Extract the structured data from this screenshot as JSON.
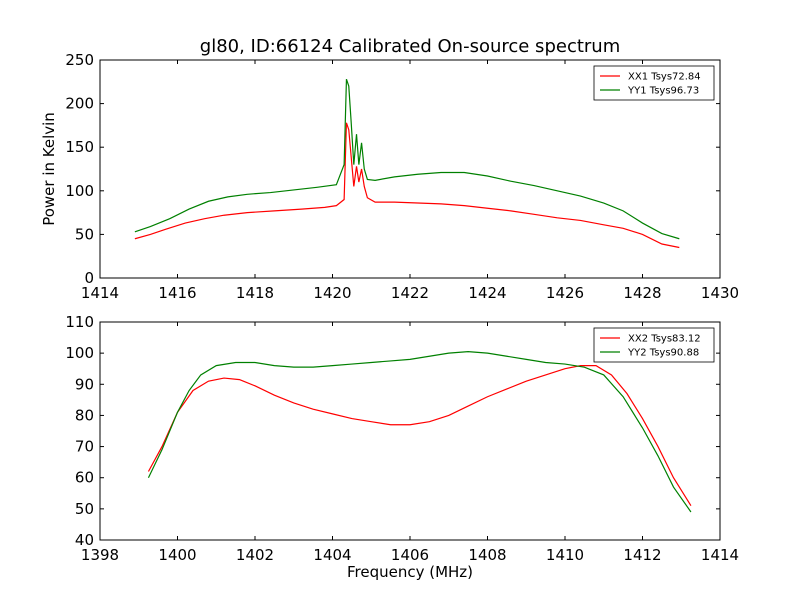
{
  "chart_data": [
    {
      "type": "line",
      "title": "gl80, ID:66124 Calibrated On-source spectrum",
      "xlabel": "",
      "ylabel": "Power in Kelvin",
      "xlim": [
        1414,
        1430
      ],
      "ylim": [
        0,
        250
      ],
      "xticks": [
        "1414",
        "1416",
        "1418",
        "1420",
        "1422",
        "1424",
        "1426",
        "1428",
        "1430"
      ],
      "yticks": [
        "0",
        "50",
        "100",
        "150",
        "200",
        "250"
      ],
      "grid": false,
      "legend": "top-right",
      "series": [
        {
          "name": "XX1 Tsys72.84",
          "color": "#ff0000",
          "points": [
            [
              1414.9,
              45
            ],
            [
              1415.3,
              50
            ],
            [
              1415.7,
              56
            ],
            [
              1416.2,
              63
            ],
            [
              1416.7,
              68
            ],
            [
              1417.2,
              72
            ],
            [
              1417.8,
              75
            ],
            [
              1418.5,
              77
            ],
            [
              1419.2,
              79
            ],
            [
              1419.8,
              81
            ],
            [
              1420.1,
              83
            ],
            [
              1420.3,
              90
            ],
            [
              1420.36,
              178
            ],
            [
              1420.42,
              170
            ],
            [
              1420.48,
              140
            ],
            [
              1420.55,
              105
            ],
            [
              1420.62,
              128
            ],
            [
              1420.68,
              110
            ],
            [
              1420.75,
              125
            ],
            [
              1420.82,
              105
            ],
            [
              1420.9,
              92
            ],
            [
              1421.1,
              87
            ],
            [
              1421.6,
              87
            ],
            [
              1422.2,
              86
            ],
            [
              1422.8,
              85
            ],
            [
              1423.4,
              83
            ],
            [
              1424,
              80
            ],
            [
              1424.6,
              77
            ],
            [
              1425.2,
              73
            ],
            [
              1425.8,
              69
            ],
            [
              1426.4,
              66
            ],
            [
              1427,
              61
            ],
            [
              1427.5,
              57
            ],
            [
              1428,
              50
            ],
            [
              1428.5,
              39
            ],
            [
              1428.95,
              35
            ]
          ]
        },
        {
          "name": "YY1 Tsys96.73",
          "color": "#008000",
          "points": [
            [
              1414.9,
              53
            ],
            [
              1415.3,
              59
            ],
            [
              1415.8,
              68
            ],
            [
              1416.3,
              79
            ],
            [
              1416.8,
              88
            ],
            [
              1417.3,
              93
            ],
            [
              1417.8,
              96
            ],
            [
              1418.4,
              98
            ],
            [
              1419,
              101
            ],
            [
              1419.6,
              104
            ],
            [
              1420.1,
              107
            ],
            [
              1420.3,
              130
            ],
            [
              1420.36,
              228
            ],
            [
              1420.42,
              220
            ],
            [
              1420.48,
              180
            ],
            [
              1420.55,
              130
            ],
            [
              1420.62,
              165
            ],
            [
              1420.68,
              130
            ],
            [
              1420.75,
              155
            ],
            [
              1420.82,
              125
            ],
            [
              1420.9,
              113
            ],
            [
              1421.1,
              112
            ],
            [
              1421.6,
              116
            ],
            [
              1422.2,
              119
            ],
            [
              1422.8,
              121
            ],
            [
              1423.4,
              121
            ],
            [
              1424,
              117
            ],
            [
              1424.6,
              111
            ],
            [
              1425.2,
              106
            ],
            [
              1425.8,
              100
            ],
            [
              1426.4,
              94
            ],
            [
              1427,
              86
            ],
            [
              1427.5,
              77
            ],
            [
              1428,
              63
            ],
            [
              1428.5,
              51
            ],
            [
              1428.95,
              45
            ]
          ]
        }
      ]
    },
    {
      "type": "line",
      "title": "",
      "xlabel": "Frequency (MHz)",
      "ylabel": "",
      "xlim": [
        1398,
        1414
      ],
      "ylim": [
        40,
        110
      ],
      "xticks": [
        "1398",
        "1400",
        "1402",
        "1404",
        "1406",
        "1408",
        "1410",
        "1412",
        "1414"
      ],
      "yticks": [
        "40",
        "50",
        "60",
        "70",
        "80",
        "90",
        "100",
        "110"
      ],
      "grid": false,
      "legend": "top-right",
      "series": [
        {
          "name": "XX2 Tsys83.12",
          "color": "#ff0000",
          "points": [
            [
              1399.25,
              62
            ],
            [
              1399.6,
              70
            ],
            [
              1400,
              81
            ],
            [
              1400.4,
              88
            ],
            [
              1400.8,
              91
            ],
            [
              1401.2,
              92
            ],
            [
              1401.6,
              91.5
            ],
            [
              1402,
              89.5
            ],
            [
              1402.5,
              86.5
            ],
            [
              1403,
              84
            ],
            [
              1403.5,
              82
            ],
            [
              1404,
              80.5
            ],
            [
              1404.5,
              79
            ],
            [
              1405,
              78
            ],
            [
              1405.5,
              77
            ],
            [
              1406,
              77
            ],
            [
              1406.5,
              78
            ],
            [
              1407,
              80
            ],
            [
              1407.5,
              83
            ],
            [
              1408,
              86
            ],
            [
              1408.5,
              88.5
            ],
            [
              1409,
              91
            ],
            [
              1409.5,
              93
            ],
            [
              1410,
              95
            ],
            [
              1410.4,
              96
            ],
            [
              1410.8,
              96
            ],
            [
              1411.2,
              93
            ],
            [
              1411.6,
              87
            ],
            [
              1412,
              79
            ],
            [
              1412.4,
              70
            ],
            [
              1412.8,
              60
            ],
            [
              1413.25,
              51
            ]
          ]
        },
        {
          "name": "YY2 Tsys90.88",
          "color": "#008000",
          "points": [
            [
              1399.25,
              60
            ],
            [
              1399.6,
              69
            ],
            [
              1400,
              81
            ],
            [
              1400.3,
              88
            ],
            [
              1400.6,
              93
            ],
            [
              1401,
              96
            ],
            [
              1401.5,
              97
            ],
            [
              1402,
              97
            ],
            [
              1402.5,
              96
            ],
            [
              1403,
              95.5
            ],
            [
              1403.5,
              95.5
            ],
            [
              1404,
              96
            ],
            [
              1404.5,
              96.5
            ],
            [
              1405,
              97
            ],
            [
              1405.5,
              97.5
            ],
            [
              1406,
              98
            ],
            [
              1406.5,
              99
            ],
            [
              1407,
              100
            ],
            [
              1407.5,
              100.5
            ],
            [
              1408,
              100
            ],
            [
              1408.5,
              99
            ],
            [
              1409,
              98
            ],
            [
              1409.5,
              97
            ],
            [
              1410,
              96.5
            ],
            [
              1410.5,
              95.5
            ],
            [
              1411,
              93
            ],
            [
              1411.5,
              86
            ],
            [
              1412,
              76
            ],
            [
              1412.4,
              67
            ],
            [
              1412.8,
              57
            ],
            [
              1413.25,
              49
            ]
          ]
        }
      ]
    }
  ]
}
